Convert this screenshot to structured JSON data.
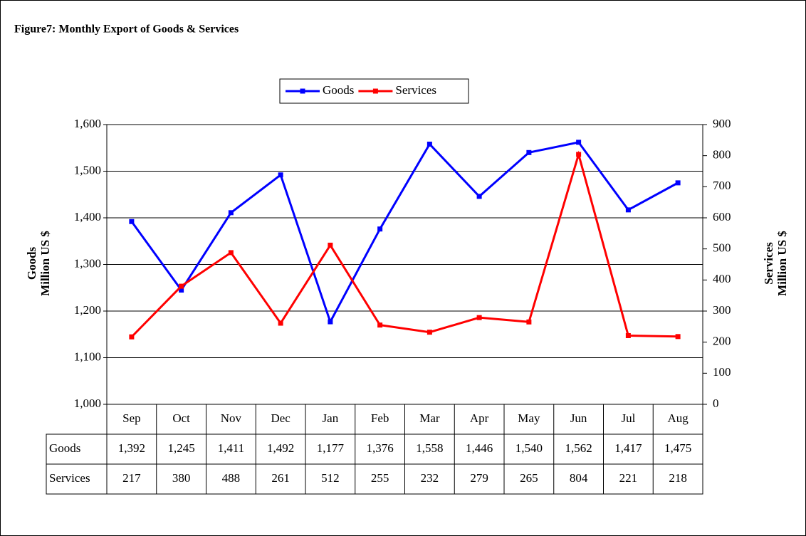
{
  "chart_data": {
    "type": "line",
    "title": "Figure7: Monthly Export of Goods & Services",
    "categories": [
      "Sep",
      "Oct",
      "Nov",
      "Dec",
      "Jan",
      "Feb",
      "Mar",
      "Apr",
      "May",
      "Jun",
      "Jul",
      "Aug"
    ],
    "series": [
      {
        "name": "Goods",
        "color": "#0000ff",
        "values": [
          1392,
          1245,
          1411,
          1492,
          1177,
          1376,
          1558,
          1446,
          1540,
          1562,
          1417,
          1475
        ],
        "value_labels": [
          "1,392",
          "1,245",
          "1,411",
          "1,492",
          "1,177",
          "1,376",
          "1,558",
          "1,446",
          "1,540",
          "1,562",
          "1,417",
          "1,475"
        ]
      },
      {
        "name": "Services",
        "color": "#ff0000",
        "axis": "y2",
        "values": [
          217,
          380,
          488,
          261,
          512,
          255,
          232,
          279,
          265,
          804,
          221,
          218
        ]
      }
    ],
    "ylabel": [
      "Goods",
      "Million US $"
    ],
    "y2label": [
      "Services",
      "Million US $"
    ],
    "ylim": [
      1000,
      1600
    ],
    "yticks": [
      {
        "value": 1000,
        "label": "1,000"
      },
      {
        "value": 1100,
        "label": "1,100"
      },
      {
        "value": 1200,
        "label": "1,200"
      },
      {
        "value": 1300,
        "label": "1,300"
      },
      {
        "value": 1400,
        "label": "1,400"
      },
      {
        "value": 1500,
        "label": "1,500"
      },
      {
        "value": 1600,
        "label": "1,600"
      }
    ],
    "y2lim": [
      0,
      900
    ],
    "y2ticks": [
      0,
      100,
      200,
      300,
      400,
      500,
      600,
      700,
      800,
      900
    ],
    "grid": true,
    "legend": "top"
  }
}
